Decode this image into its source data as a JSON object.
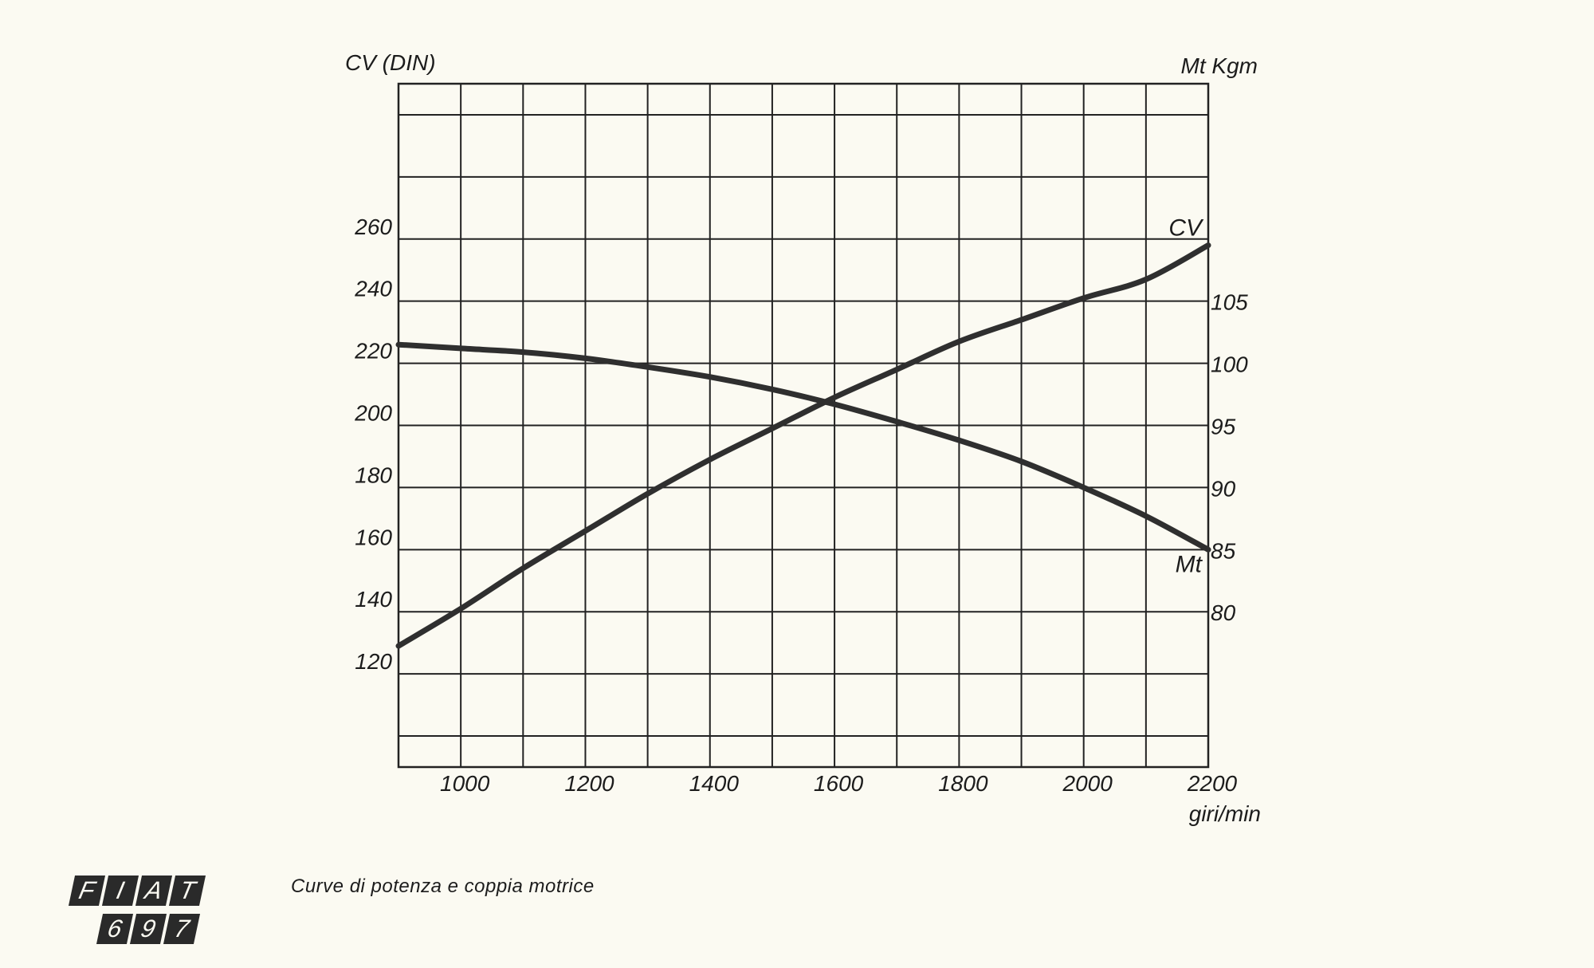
{
  "caption": "Curve di potenza e coppia motrice",
  "logo": {
    "row1": [
      "F",
      "I",
      "A",
      "T"
    ],
    "row2": [
      "6",
      "9",
      "7"
    ]
  },
  "chart_data": {
    "type": "line",
    "x_unit_label": "giri/min",
    "left_axis_label": "CV (DIN)",
    "right_axis_label": "Mt Kgm",
    "x_ticks": [
      1000,
      1200,
      1400,
      1600,
      1800,
      2000,
      2200
    ],
    "left_ticks": [
      120,
      140,
      160,
      180,
      200,
      220,
      240,
      260
    ],
    "right_ticks": [
      80,
      85,
      90,
      95,
      100,
      105
    ],
    "xlim": [
      900,
      2200
    ],
    "left_ylim": [
      90,
      310
    ],
    "grid": true,
    "series": [
      {
        "name": "CV",
        "axis": "left",
        "x": [
          900,
          1000,
          1100,
          1200,
          1300,
          1400,
          1500,
          1600,
          1700,
          1800,
          1900,
          2000,
          2100,
          2200
        ],
        "values": [
          129,
          141,
          154,
          166,
          178,
          189,
          199,
          209,
          218,
          227,
          234,
          241,
          247,
          258
        ]
      },
      {
        "name": "Mt",
        "axis": "right",
        "x": [
          900,
          1000,
          1100,
          1200,
          1300,
          1400,
          1500,
          1600,
          1700,
          1800,
          1900,
          2000,
          2100,
          2200
        ],
        "values": [
          101.5,
          101.2,
          100.9,
          100.4,
          99.7,
          98.9,
          97.9,
          96.7,
          95.3,
          93.8,
          92.1,
          90.0,
          87.7,
          85.0
        ]
      }
    ],
    "series_colors": {
      "CV": "#2f2f2f",
      "Mt": "#2f2f2f"
    },
    "grid_color": "#222222"
  }
}
